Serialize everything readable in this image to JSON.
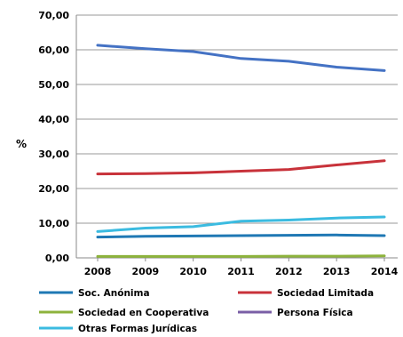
{
  "chart_data": {
    "type": "line",
    "title": "",
    "xlabel": "",
    "ylabel": "%",
    "ylim": [
      0,
      70
    ],
    "y_ticks": [
      "0,00",
      "10,00",
      "20,00",
      "30,00",
      "40,00",
      "50,00",
      "60,00",
      "70,00"
    ],
    "categories": [
      "2008",
      "2009",
      "2010",
      "2011",
      "2012",
      "2013",
      "2014"
    ],
    "grid": "horizontal",
    "legend_position": "bottom",
    "series": [
      {
        "name": "Soc. Anónima",
        "color": "#1f78b4",
        "values": [
          6.0,
          6.2,
          6.3,
          6.4,
          6.5,
          6.6,
          6.4
        ]
      },
      {
        "name": "Sociedad Limitada",
        "color": "#c8323a",
        "values": [
          24.2,
          24.3,
          24.5,
          25.0,
          25.5,
          26.8,
          28.0
        ]
      },
      {
        "name": "Sociedad en Cooperativa",
        "color": "#8db33c",
        "values": [
          0.4,
          0.4,
          0.4,
          0.4,
          0.5,
          0.5,
          0.6
        ]
      },
      {
        "name": "Persona Física",
        "color": "#7a5fa6",
        "values": [
          61.3,
          60.3,
          59.5,
          57.5,
          56.7,
          55.0,
          54.0
        ]
      },
      {
        "name": "Otras Formas Jurídicas",
        "color": "#3bbbe0",
        "values": [
          7.6,
          8.6,
          9.0,
          10.6,
          10.9,
          11.5,
          11.8
        ]
      }
    ],
    "line_overrides": {
      "Persona Física": "#4472c4"
    }
  }
}
